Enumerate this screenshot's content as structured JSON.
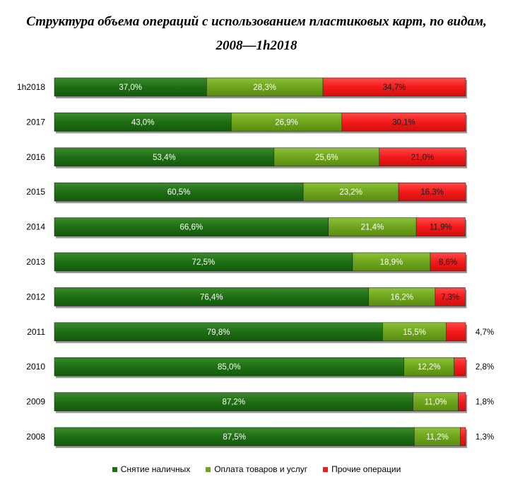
{
  "title_line1": "Структура объема операций с использованием пластиковых карт, по видам,",
  "title_line2": "2008—1h2018",
  "chart_data": {
    "type": "bar",
    "orientation": "horizontal",
    "stacked": true,
    "percent": true,
    "categories": [
      "1h2018",
      "2017",
      "2016",
      "2015",
      "2014",
      "2013",
      "2012",
      "2011",
      "2010",
      "2009",
      "2008"
    ],
    "series": [
      {
        "name": "Снятие наличных",
        "color": "#1e6e14",
        "values": [
          37.0,
          43.0,
          53.4,
          60.5,
          66.6,
          72.5,
          76.4,
          79.8,
          85.0,
          87.2,
          87.5
        ],
        "labels": [
          "37,0%",
          "43,0%",
          "53,4%",
          "60,5%",
          "66,6%",
          "72,5%",
          "76,4%",
          "79,8%",
          "85,0%",
          "87,2%",
          "87,5%"
        ]
      },
      {
        "name": "Оплата товаров и услуг",
        "color": "#6ea51c",
        "values": [
          28.3,
          26.9,
          25.6,
          23.2,
          21.4,
          18.9,
          16.2,
          15.5,
          12.2,
          11.0,
          11.2
        ],
        "labels": [
          "28,3%",
          "26,9%",
          "25,6%",
          "23,2%",
          "21,4%",
          "18,9%",
          "16,2%",
          "15,5%",
          "12,2%",
          "11,0%",
          "11,2%"
        ]
      },
      {
        "name": "Прочие операции",
        "color": "#f51a1a",
        "values": [
          34.7,
          30.1,
          21.0,
          16.3,
          11.9,
          8.6,
          7.3,
          4.7,
          2.8,
          1.8,
          1.3
        ],
        "labels": [
          "34,7%",
          "30,1%",
          "21,0%",
          "16,3%",
          "11,9%",
          "8,6%",
          "7,3%",
          "4,7%",
          "2,8%",
          "1,8%",
          "1,3%"
        ]
      }
    ],
    "xlim": [
      0,
      100
    ],
    "grid": false,
    "legend_position": "bottom"
  }
}
